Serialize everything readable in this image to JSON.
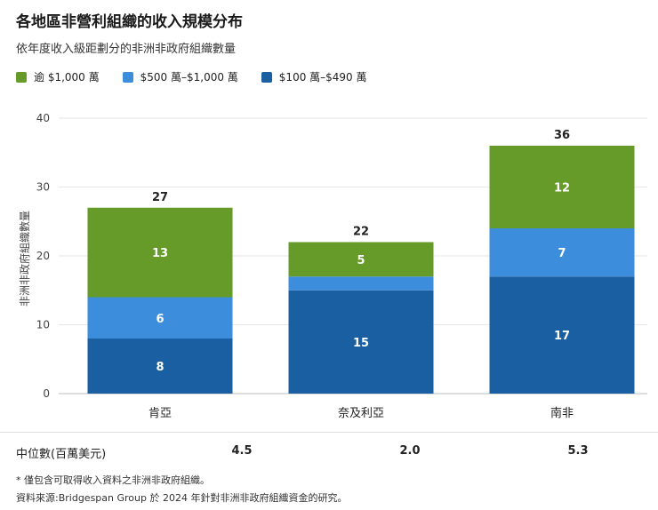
{
  "title": "各地區非營利組織的收入規模分布",
  "subtitle": "依年度收入級距劃分的非洲非政府組織數量",
  "colors": {
    "green": "#669b2a",
    "light_blue": "#3c8edc",
    "dark_blue": "#1b5fa3"
  },
  "chart_data": {
    "type": "bar",
    "stacked": true,
    "categories": [
      "肯亞",
      "奈及利亞",
      "南非"
    ],
    "series": [
      {
        "name": "$100 萬–$490 萬",
        "values": [
          8,
          15,
          17
        ],
        "show_labels": [
          true,
          true,
          true
        ]
      },
      {
        "name": "$500 萬–$1,000 萬",
        "values": [
          6,
          2,
          7
        ],
        "show_labels": [
          true,
          false,
          true
        ]
      },
      {
        "name": "逾 $1,000 萬",
        "values": [
          13,
          5,
          12
        ],
        "show_labels": [
          true,
          true,
          true
        ]
      }
    ],
    "totals": [
      27,
      22,
      36
    ],
    "ylabel": "非洲非政府組織數量",
    "ylim": [
      0,
      40
    ],
    "yticks": [
      0,
      10,
      20,
      30,
      40
    ],
    "grid": true,
    "legend_position": "top-left"
  },
  "legend": [
    {
      "label": "逾 $1,000 萬",
      "color": "#669b2a"
    },
    {
      "label": "$500 萬–$1,000 萬",
      "color": "#3c8edc"
    },
    {
      "label": "$100 萬–$490 萬",
      "color": "#1b5fa3"
    }
  ],
  "median": {
    "label": "中位數(百萬美元)",
    "values": [
      "4.5",
      "2.0",
      "5.3"
    ]
  },
  "footnotes": {
    "note": "* 僅包含可取得收入資料之非洲非政府組織。",
    "source": "資料來源:Bridgespan Group 於 2024 年針對非洲非政府組織資金的研究。"
  }
}
